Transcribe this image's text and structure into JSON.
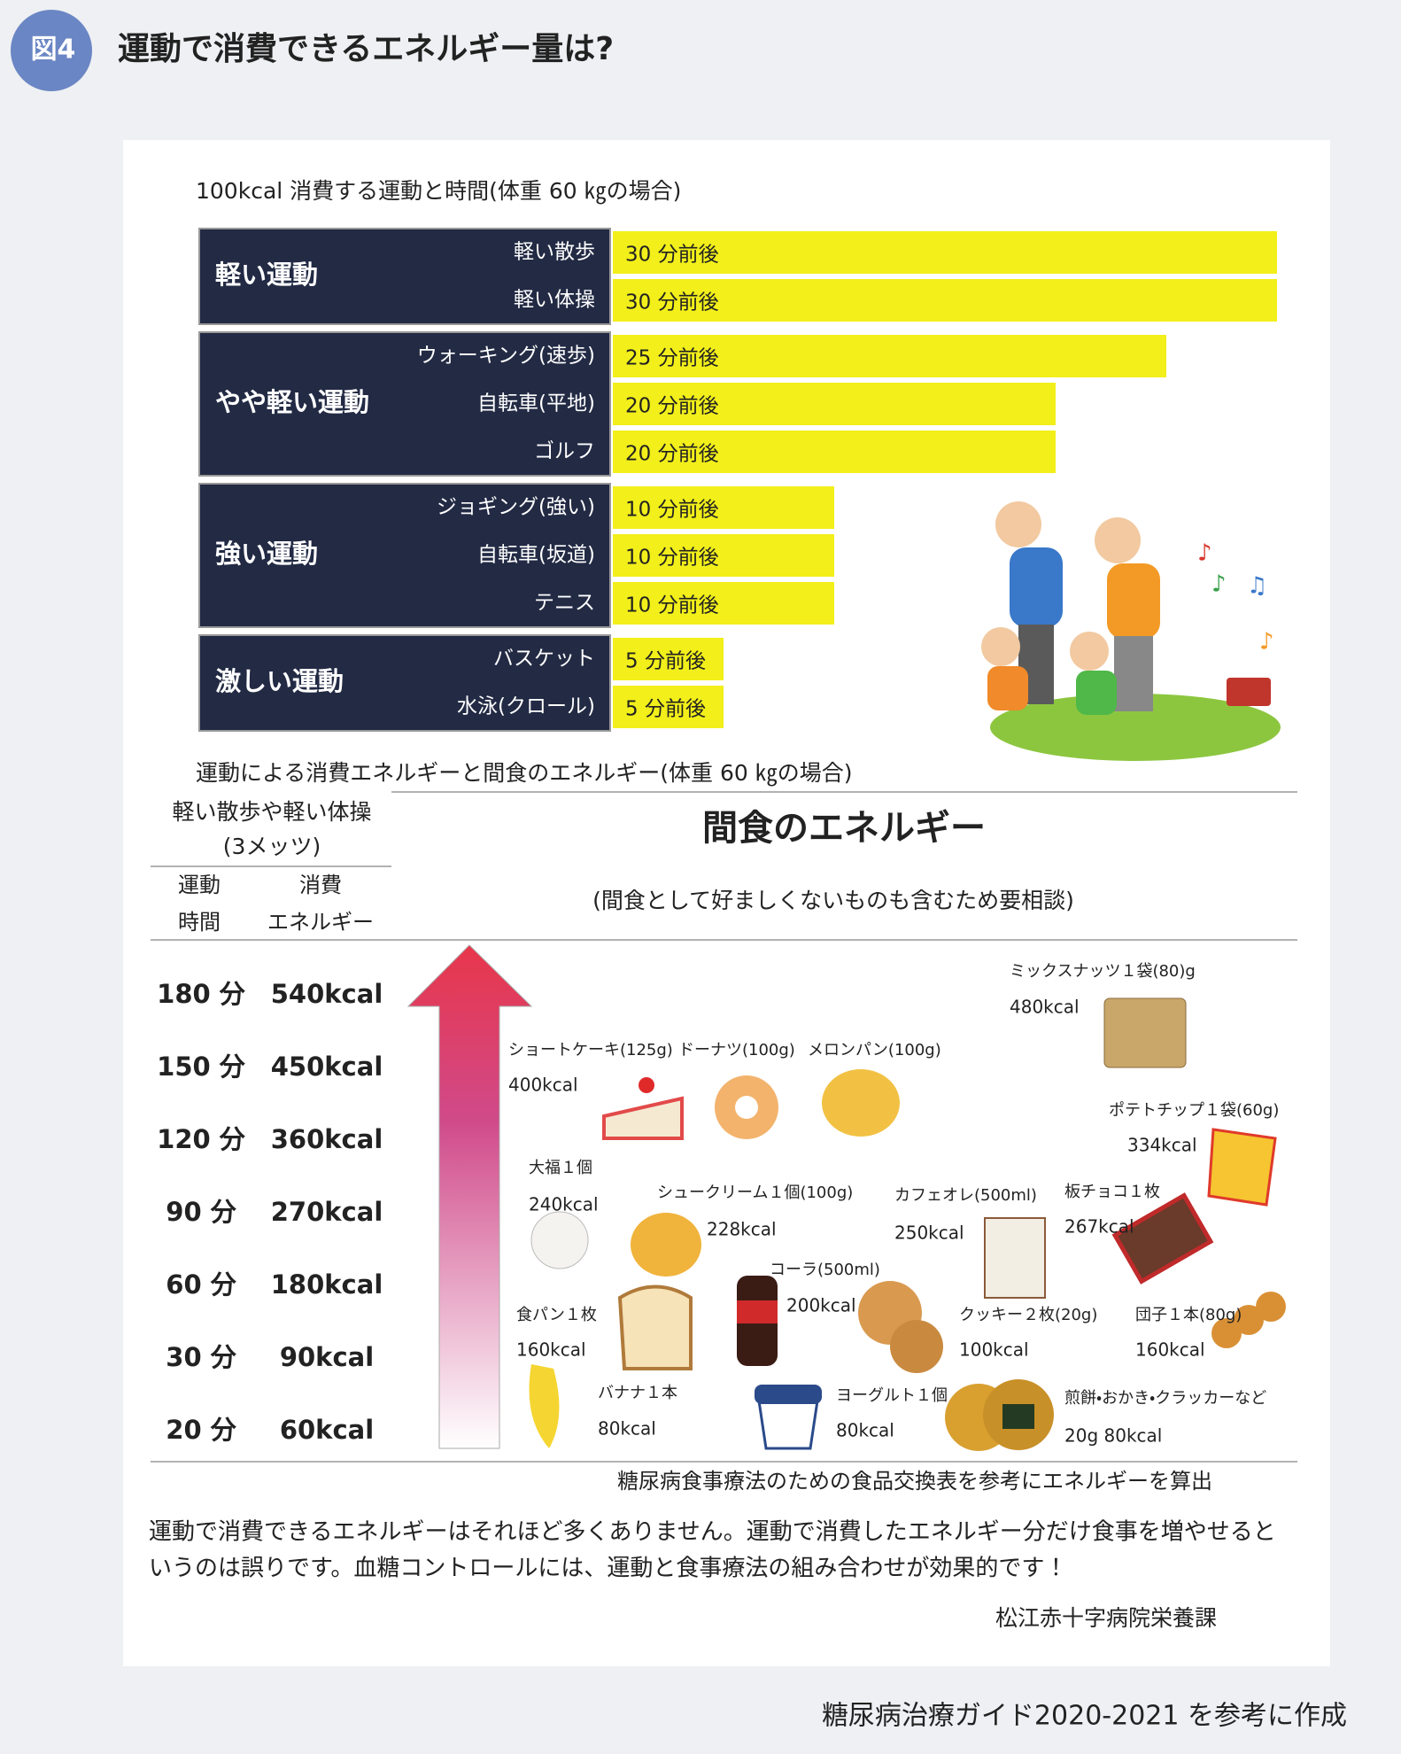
{
  "header": {
    "badge": "図4",
    "title": "運動で消費できるエネルギー量は?"
  },
  "exercise": {
    "subtitle": "100kcal 消費する運動と時間(体重 60 ㎏の場合)",
    "groups": [
      {
        "label": "軽い運動",
        "items": [
          {
            "name": "軽い散歩",
            "label": "30 分前後",
            "minutes": 30
          },
          {
            "name": "軽い体操",
            "label": "30 分前後",
            "minutes": 30
          }
        ]
      },
      {
        "label": "やや軽い運動",
        "items": [
          {
            "name": "ウォーキング(速歩)",
            "label": "25 分前後",
            "minutes": 25
          },
          {
            "name": "自転車(平地)",
            "label": "20 分前後",
            "minutes": 20
          },
          {
            "name": "ゴルフ",
            "label": "20 分前後",
            "minutes": 20
          }
        ]
      },
      {
        "label": "強い運動",
        "items": [
          {
            "name": "ジョギング(強い)",
            "label": "10 分前後",
            "minutes": 10
          },
          {
            "name": "自転車(坂道)",
            "label": "10 分前後",
            "minutes": 10
          },
          {
            "name": "テニス",
            "label": "10 分前後",
            "minutes": 10
          }
        ]
      },
      {
        "label": "激しい運動",
        "items": [
          {
            "name": "バスケット",
            "label": "5 分前後",
            "minutes": 5
          },
          {
            "name": "水泳(クロール)",
            "label": "5 分前後",
            "minutes": 5
          }
        ]
      }
    ]
  },
  "energy": {
    "subtitle": "運動による消費エネルギーと間食のエネルギー(体重 60 ㎏の場合)",
    "table_title": [
      "軽い散歩や軽い体操",
      "(3メッツ)"
    ],
    "col_headers": [
      [
        "運動",
        "時間"
      ],
      [
        "消費",
        "エネルギー"
      ]
    ],
    "rows": [
      [
        "180 分",
        "540kcal"
      ],
      [
        "150 分",
        "450kcal"
      ],
      [
        "120 分",
        "360kcal"
      ],
      [
        "90 分",
        "270kcal"
      ],
      [
        "60 分",
        "180kcal"
      ],
      [
        "30 分",
        "90kcal"
      ],
      [
        "20 分",
        "60kcal"
      ]
    ],
    "snack_title": "間食のエネルギー",
    "snack_subtitle": "(間食として好ましくないものも含むため要相談)",
    "snacks": [
      {
        "name": "ミックスナッツ１袋(80)g",
        "kcal": "480kcal"
      },
      {
        "name": "ショートケーキ(125g)",
        "kcal": "400kcal"
      },
      {
        "name": "ドーナツ(100g)"
      },
      {
        "name": "メロンパン(100g)"
      },
      {
        "name": "ポテトチップ１袋(60g)",
        "kcal": "334kcal"
      },
      {
        "name": "大福１個",
        "kcal": "240kcal"
      },
      {
        "name": "シュークリーム１個(100g)",
        "kcal": "228kcal"
      },
      {
        "name": "カフェオレ(500ml)",
        "kcal": "250kcal"
      },
      {
        "name": "板チョコ１枚",
        "kcal": "267kcal"
      },
      {
        "name": "コーラ(500ml)",
        "kcal": "200kcal"
      },
      {
        "name": "食パン１枚",
        "kcal": "160kcal"
      },
      {
        "name": "クッキー２枚(20g)",
        "kcal": "100kcal"
      },
      {
        "name": "団子１本(80g)",
        "kcal": "160kcal"
      },
      {
        "name": "バナナ１本",
        "kcal": "80kcal"
      },
      {
        "name": "ヨーグルト１個",
        "kcal": "80kcal"
      },
      {
        "name": "煎餅・おかき・クラッカーなど",
        "kcal": "20g  80kcal"
      }
    ],
    "note": "糖尿病食事療法のための食品交換表を参考にエネルギーを算出"
  },
  "paragraph": [
    "運動で消費できるエネルギーはそれほど多くありません。運動で消費したエネルギー分だけ食事を増やせると",
    "いうのは誤りです。血糖コントロールには、運動と食事療法の組み合わせが効果的です！"
  ],
  "credit": "松江赤十字病院栄養課",
  "footer": "糖尿病治療ガイド2020-2021 を参考に作成"
}
